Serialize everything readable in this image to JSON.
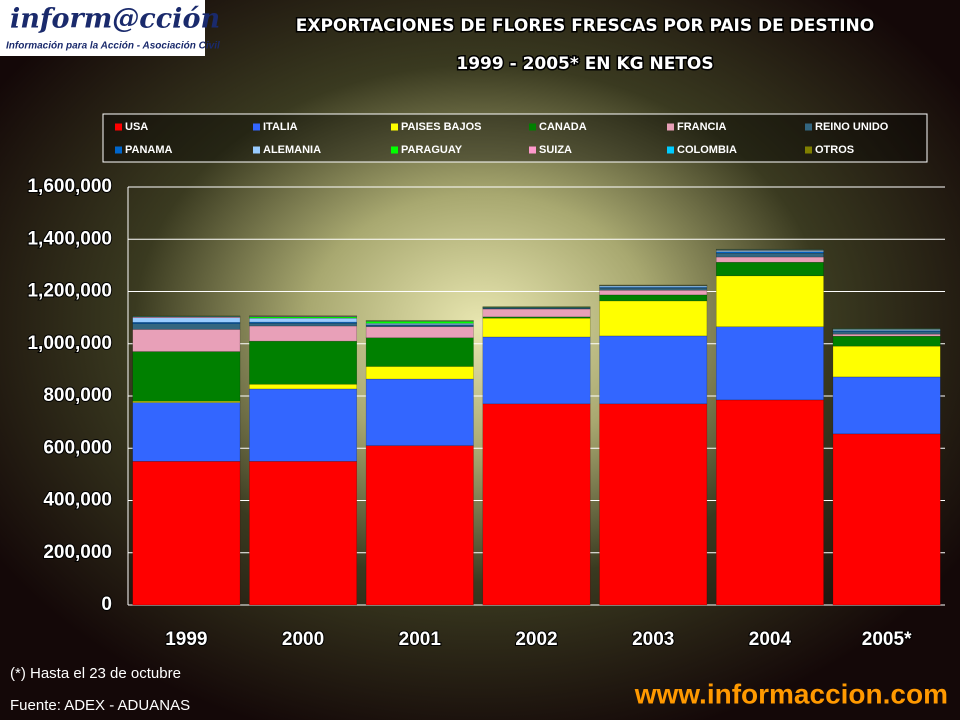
{
  "logo": {
    "name": "inform@cción",
    "tagline": "Información para la Acción - Asociación Civil"
  },
  "chart_data": {
    "type": "stacked_bar",
    "title": "EXPORTACIONES DE FLORES FRESCAS POR PAIS DE DESTINO",
    "subtitle": "1999 - 2005* EN KG NETOS",
    "categories": [
      "1999",
      "2000",
      "2001",
      "2002",
      "2003",
      "2004",
      "2005*"
    ],
    "series": [
      {
        "name": "USA",
        "color": "#ff0000",
        "values": [
          550000,
          550000,
          610000,
          770000,
          770000,
          785000,
          655000
        ]
      },
      {
        "name": "ITALIA",
        "color": "#3366ff",
        "values": [
          225000,
          277000,
          255000,
          256000,
          260000,
          280000,
          218000
        ]
      },
      {
        "name": "PAISES BAJOS",
        "color": "#ffff00",
        "values": [
          5000,
          18000,
          48000,
          72000,
          134000,
          195000,
          118000
        ]
      },
      {
        "name": "CANADA",
        "color": "#008000",
        "values": [
          190000,
          165000,
          110000,
          5000,
          23000,
          52000,
          38000
        ]
      },
      {
        "name": "FRANCIA",
        "color": "#e8a0b8",
        "values": [
          85000,
          58000,
          42000,
          30000,
          18000,
          20000,
          8000
        ]
      },
      {
        "name": "REINO UNIDO",
        "color": "#336680",
        "values": [
          22000,
          10000,
          5000,
          3000,
          8000,
          15000,
          10000
        ]
      },
      {
        "name": "PANAMA",
        "color": "#0066cc",
        "values": [
          5000,
          5000,
          3000,
          1000,
          3000,
          5000,
          3000
        ]
      },
      {
        "name": "ALEMANIA",
        "color": "#99ccff",
        "values": [
          18000,
          15000,
          5000,
          1000,
          5000,
          5000,
          5000
        ]
      },
      {
        "name": "PARAGUAY",
        "color": "#00ff00",
        "values": [
          0,
          5000,
          8000,
          1000,
          1000,
          1000,
          1000
        ]
      },
      {
        "name": "SUIZA",
        "color": "#ff99cc",
        "values": [
          3000,
          2000,
          1000,
          1000,
          1000,
          2000,
          1000
        ]
      },
      {
        "name": "COLOMBIA",
        "color": "#00ccff",
        "values": [
          2000,
          1000,
          1000,
          1000,
          1000,
          1000,
          1000
        ]
      },
      {
        "name": "OTROS",
        "color": "#808000",
        "values": [
          2000,
          1000,
          1000,
          1000,
          1000,
          1000,
          1000
        ]
      }
    ],
    "ylim": [
      0,
      1600000
    ],
    "yticks": [
      0,
      {
        "value": 200000,
        "label": "200,000"
      },
      {
        "value": 400000,
        "label": "400,000"
      },
      {
        "value": 600000,
        "label": "600,000"
      },
      {
        "value": 800000,
        "label": "800,000"
      },
      {
        "value": 1000000,
        "label": "1,000,000"
      },
      {
        "value": 1200000,
        "label": "1,200,000"
      },
      {
        "value": 1400000,
        "label": "1,400,000"
      },
      {
        "value": 1600000,
        "label": "1,600,000"
      }
    ],
    "grid": true
  },
  "footnote": "(*) Hasta el 23 de octubre",
  "source": "Fuente: ADEX - ADUANAS",
  "url": "www.informaccion.com"
}
